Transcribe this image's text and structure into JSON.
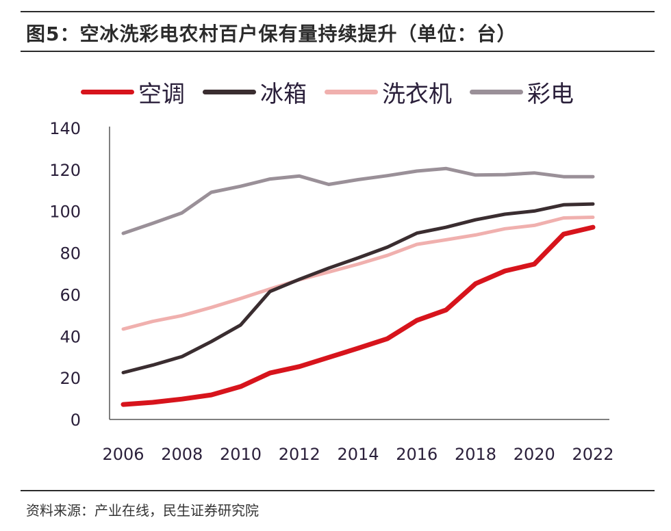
{
  "chart_data": {
    "type": "line",
    "title": "图5：空冰洗彩电农村百户保有量持续提升（单位：台）",
    "source": "资料来源：产业在线，民生证券研究院",
    "xlabel": "",
    "ylabel": "",
    "ylim": [
      0,
      140
    ],
    "yticks": [
      0,
      20,
      40,
      60,
      80,
      100,
      120,
      140
    ],
    "x": [
      2006,
      2007,
      2008,
      2009,
      2010,
      2011,
      2012,
      2013,
      2014,
      2015,
      2016,
      2017,
      2018,
      2019,
      2020,
      2021,
      2022
    ],
    "xticks": [
      "2006",
      "2008",
      "2010",
      "2012",
      "2014",
      "2016",
      "2018",
      "2020",
      "2022"
    ],
    "grid": false,
    "legend_position": "top",
    "series": [
      {
        "name": "空调",
        "color": "#d7141c",
        "values": [
          7.2,
          8.2,
          9.8,
          11.8,
          15.8,
          22.3,
          25.4,
          29.8,
          34.2,
          38.8,
          47.6,
          52.6,
          65.2,
          71.3,
          74.6,
          89,
          92.3
        ]
      },
      {
        "name": "冰箱",
        "color": "#3a2d30",
        "values": [
          22.5,
          26.1,
          30.2,
          37.4,
          45.4,
          61.5,
          67.3,
          72.7,
          77.6,
          82.8,
          89.5,
          92.3,
          95.9,
          98.6,
          100.1,
          103.1,
          103.5
        ]
      },
      {
        "name": "洗衣机",
        "color": "#f0b0ae",
        "values": [
          43.4,
          47.1,
          49.9,
          53.8,
          58.1,
          62.7,
          67.1,
          70.8,
          74.6,
          78.8,
          84.1,
          86.3,
          88.6,
          91.6,
          93.2,
          96.8,
          97.1
        ]
      },
      {
        "name": "彩电",
        "color": "#9a9098",
        "values": [
          89.4,
          94.2,
          99.2,
          109.1,
          112,
          115.5,
          116.9,
          112.9,
          115.2,
          117.1,
          119.3,
          120.5,
          117.4,
          117.6,
          118.4,
          116.6,
          116.6
        ]
      }
    ]
  }
}
